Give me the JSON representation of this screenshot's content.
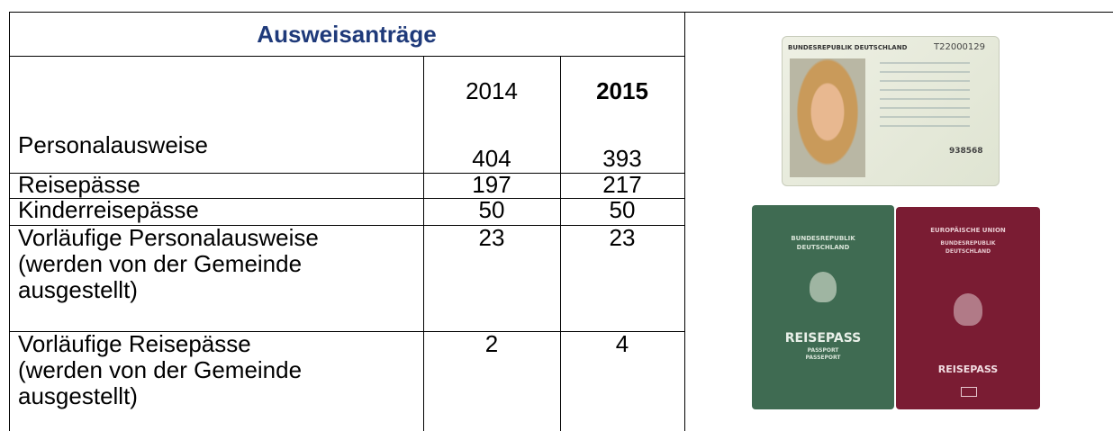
{
  "table": {
    "title": "Ausweisanträge",
    "columns": [
      "2014",
      "2015"
    ],
    "rows": [
      {
        "label": [
          "Personalausweise"
        ],
        "values": [
          404,
          393
        ]
      },
      {
        "label": [
          "Reisepässe"
        ],
        "values": [
          197,
          217
        ]
      },
      {
        "label": [
          "Kinderreisepässe"
        ],
        "values": [
          50,
          50
        ]
      },
      {
        "label": [
          "Vorläufige Personalausweise",
          "(werden von der Gemeinde",
          "ausgestellt)"
        ],
        "values": [
          23,
          23
        ]
      },
      {
        "label": [
          "Vorläufige Reisepässe",
          "(werden von der Gemeinde",
          "ausgestellt)"
        ],
        "values": [
          2,
          4
        ]
      }
    ]
  },
  "images": {
    "id_card": {
      "header": "BUNDESREPUBLIK DEUTSCHLAND",
      "number": "T22000129",
      "code": "938568"
    },
    "green_passport": {
      "country": [
        "BUNDESREPUBLIK",
        "DEUTSCHLAND"
      ],
      "title": "REISEPASS",
      "subtitle": [
        "PASSPORT",
        "PASSEPORT"
      ]
    },
    "red_passport": {
      "union": "EUROPÄISCHE UNION",
      "country": [
        "BUNDESREPUBLIK",
        "DEUTSCHLAND"
      ],
      "title": "REISEPASS"
    }
  }
}
